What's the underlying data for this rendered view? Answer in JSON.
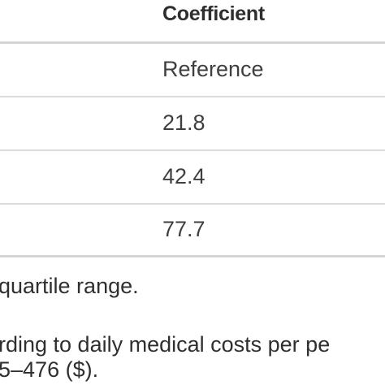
{
  "table": {
    "header": {
      "coefficient": "Coefficient"
    },
    "rows": [
      {
        "coefficient": "Reference"
      },
      {
        "coefficient": "21.8"
      },
      {
        "coefficient": "42.4"
      },
      {
        "coefficient": "77.7"
      }
    ]
  },
  "footnotes": {
    "abbreviation": "quartile range.",
    "note_line_1": "rding to daily medical costs per pe",
    "note_line_2": "5–476 ($)."
  }
}
